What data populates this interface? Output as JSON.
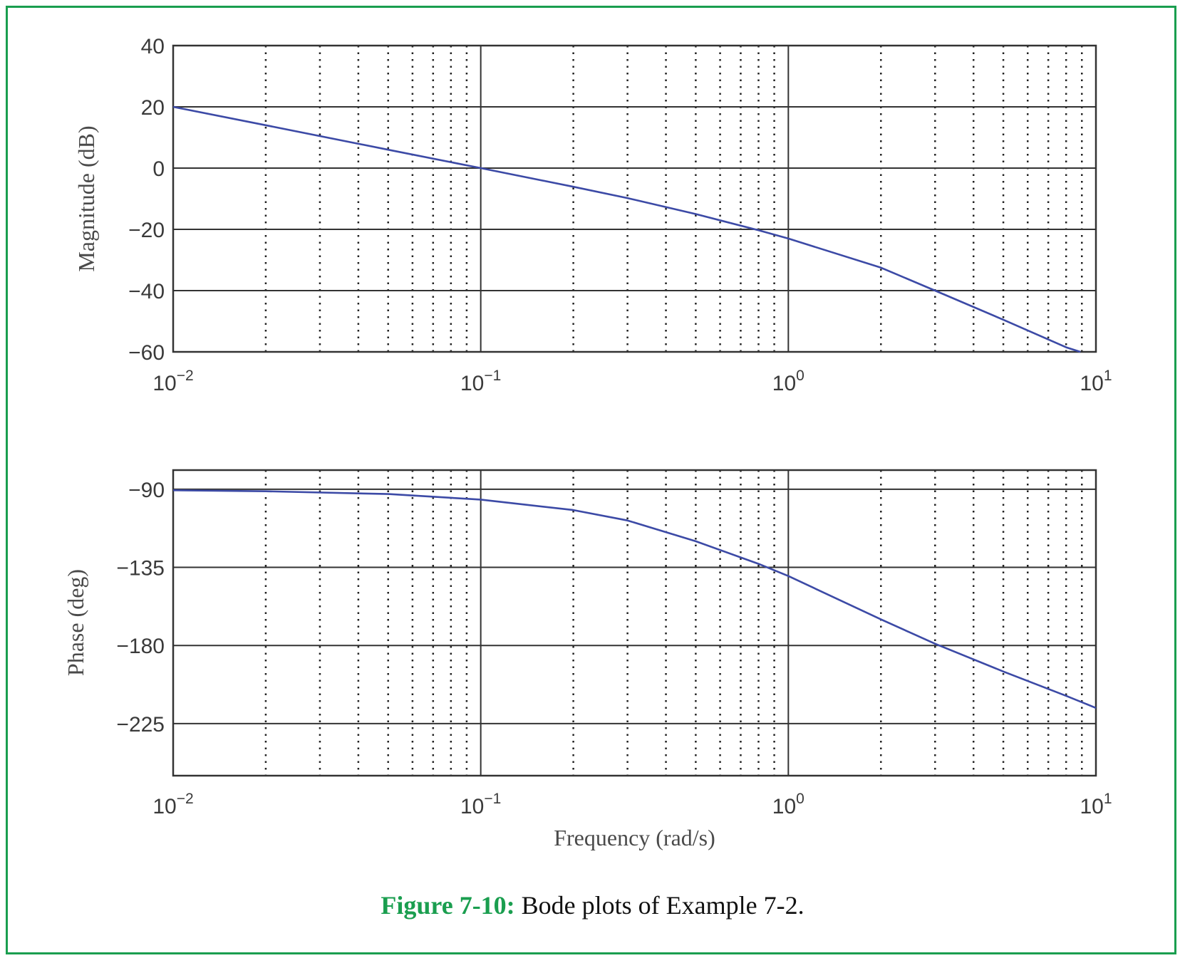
{
  "caption": {
    "label": "Figure 7-10:",
    "text": " Bode plots of Example 7-2."
  },
  "colors": {
    "frame": "#1a9e4f",
    "curve": "#3c4aa6",
    "grid": "#222222"
  },
  "chart_data": [
    {
      "type": "line",
      "xscale": "log",
      "xlim": [
        0.01,
        10
      ],
      "ylim": [
        -60,
        40
      ],
      "ylabel": "Magnitude (dB)",
      "xlabel": "",
      "grid": true,
      "x_ticks": [
        {
          "base": "10",
          "exp": "−2"
        },
        {
          "base": "10",
          "exp": "−1"
        },
        {
          "base": "10",
          "exp": "0"
        },
        {
          "base": "10",
          "exp": "1"
        }
      ],
      "y_ticks": [
        "40",
        "20",
        "0",
        "−20",
        "−40",
        "−60"
      ],
      "series": [
        {
          "x": [
            0.01,
            0.02,
            0.05,
            0.1,
            0.2,
            0.3,
            0.5,
            0.8,
            1,
            2,
            3,
            5,
            8,
            8.9
          ],
          "y": [
            20,
            14,
            6,
            0,
            -6.1,
            -9.8,
            -15,
            -20.3,
            -23,
            -32.5,
            -40,
            -49.5,
            -58.5,
            -60
          ]
        }
      ]
    },
    {
      "type": "line",
      "xscale": "log",
      "xlim": [
        0.01,
        10
      ],
      "ylim": [
        -255,
        -79
      ],
      "ylabel": "Phase (deg)",
      "xlabel": "Frequency (rad/s)",
      "grid": true,
      "x_ticks": [
        {
          "base": "10",
          "exp": "−2"
        },
        {
          "base": "10",
          "exp": "−1"
        },
        {
          "base": "10",
          "exp": "0"
        },
        {
          "base": "10",
          "exp": "1"
        }
      ],
      "y_ticks": [
        "−90",
        "−135",
        "−180",
        "−225"
      ],
      "series": [
        {
          "x": [
            0.01,
            0.02,
            0.05,
            0.1,
            0.2,
            0.3,
            0.5,
            0.8,
            1,
            2,
            3,
            5,
            8,
            10
          ],
          "y": [
            -90.6,
            -91.2,
            -92.8,
            -96,
            -102,
            -108,
            -120,
            -133,
            -140,
            -165,
            -179,
            -195,
            -209,
            -216
          ]
        }
      ]
    }
  ]
}
